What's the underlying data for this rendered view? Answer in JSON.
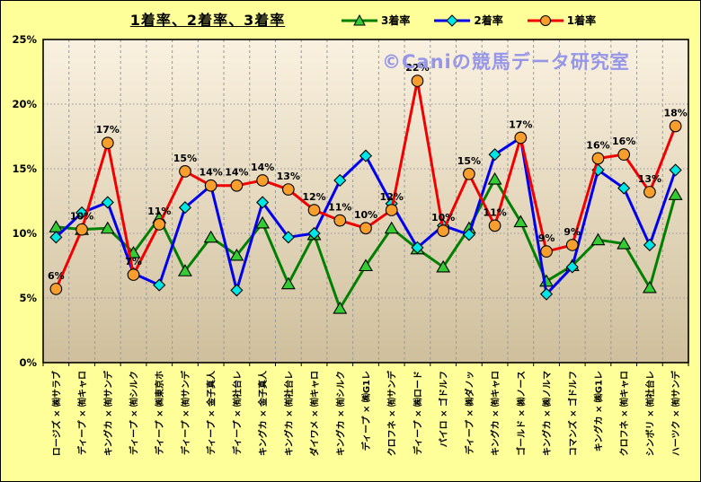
{
  "title": "1着率、2着率、3着率",
  "watermark": "©Caniの競馬データ研究室",
  "colors": {
    "background": "#FFFF99",
    "plot_top": "#FAF1E0",
    "plot_bottom": "#CFBF9C",
    "grid": "#999999",
    "axis": "#000000",
    "watermark": "#9696E8",
    "label_text": "#000000"
  },
  "chart_data": {
    "type": "line",
    "title": "1着率、2着率、3着率",
    "categories": [
      "ロージズ × ㈱サラブ",
      "ディープ × ㈲キャロ",
      "キングカ × ㈲サンデ",
      "ディープ × ㈲シルク",
      "ディープ × ㈱東京ホ",
      "ディープ × ㈲サンデ",
      "ディープ × 金子真人",
      "ディープ × ㈲社台レ",
      "キングカ × 金子真人",
      "キングカ × ㈲社台レ",
      "ダイワメ × ㈲キャロ",
      "キングカ × ㈲シルク",
      "ディープ × ㈱G1レ",
      "クロフネ × ㈲サンデ",
      "ディープ × ㈱ロード",
      "パイロ × ゴドルフ",
      "ディープ × ㈱ダノッ",
      "キングカ × ㈲キャロ",
      "ゴールド × ㈱ノース",
      "キングカ × ㈱ノルマ",
      "コマンズ × ゴドルフ",
      "キングカ × ㈱G1レ",
      "クロフネ × ㈲キャロ",
      "シンボリ × ㈲社台レ",
      "ハーツク × ㈲サンデ"
    ],
    "series": [
      {
        "name": "3着率",
        "marker": "triangle",
        "line_color": "#008000",
        "marker_color": "#33CC33",
        "values": [
          10.5,
          10.3,
          10.4,
          8.5,
          11.2,
          7.1,
          9.7,
          8.3,
          10.8,
          6.1,
          9.9,
          4.2,
          7.5,
          10.4,
          8.8,
          7.4,
          10.4,
          14.2,
          10.9,
          6.3,
          7.5,
          9.5,
          9.2,
          5.8,
          13.0
        ]
      },
      {
        "name": "2着率",
        "marker": "diamond",
        "line_color": "#0000EE",
        "marker_color": "#00E5E5",
        "values": [
          9.7,
          11.6,
          12.4,
          6.9,
          6.0,
          12.0,
          13.7,
          5.6,
          12.4,
          9.7,
          10.0,
          14.1,
          16.0,
          12.3,
          8.9,
          10.6,
          9.9,
          16.1,
          17.4,
          5.3,
          7.4,
          14.9,
          13.5,
          9.1,
          14.9
        ]
      },
      {
        "name": "1着率",
        "marker": "circle",
        "line_color": "#F00000",
        "marker_color": "#F79E2D",
        "values": [
          5.7,
          10.3,
          17.0,
          6.8,
          10.7,
          14.8,
          13.7,
          13.7,
          14.1,
          13.4,
          11.8,
          11.0,
          10.4,
          11.8,
          21.8,
          10.2,
          14.6,
          10.6,
          17.4,
          8.6,
          9.1,
          15.8,
          16.1,
          13.2,
          18.3
        ],
        "data_labels": [
          "6%",
          "10%",
          "17%",
          "7%",
          "11%",
          "15%",
          "14%",
          "14%",
          "14%",
          "13%",
          "12%",
          "11%",
          "10%",
          "12%",
          "22%",
          "10%",
          "15%",
          "11%",
          "17%",
          "9%",
          "9%",
          "16%",
          "16%",
          "13%",
          "18%"
        ]
      }
    ],
    "xlabel": "",
    "ylabel": "",
    "ylim": [
      0,
      25
    ],
    "ytick_step": 5,
    "yticks": [
      "0%",
      "5%",
      "10%",
      "15%",
      "20%",
      "25%"
    ],
    "grid": true,
    "legend_position": "top"
  }
}
